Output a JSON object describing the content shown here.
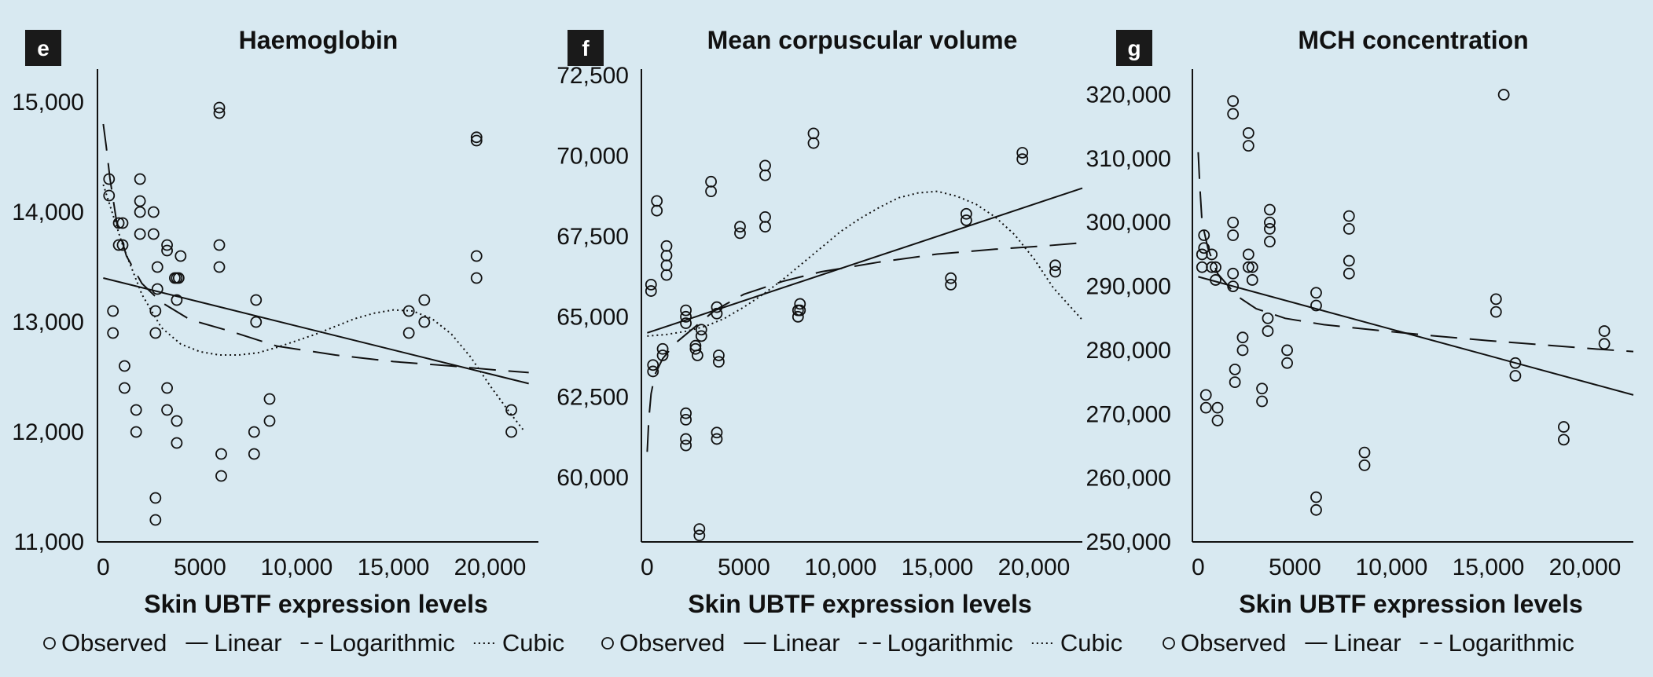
{
  "chart_data": [
    {
      "panel": "e",
      "type": "scatter",
      "title": "Haemoglobin",
      "xlabel": "Skin UBTF expression levels",
      "ylabel": "",
      "xlim": [
        -300,
        22500
      ],
      "ylim": [
        11000,
        15300
      ],
      "xticks": [
        0,
        5000,
        10000,
        15000,
        20000
      ],
      "xtick_labels": [
        "0",
        "5000",
        "10,000",
        "15,000",
        "20,000"
      ],
      "yticks": [
        11000,
        12000,
        13000,
        14000,
        15000
      ],
      "ytick_labels": [
        "11,000",
        "12,000",
        "13,000",
        "14,000",
        "15,000"
      ],
      "legend": [
        "Observed",
        "Linear",
        "Logarithmic",
        "Cubic"
      ],
      "observed": [
        [
          300,
          14300
        ],
        [
          300,
          14150
        ],
        [
          500,
          13100
        ],
        [
          500,
          12900
        ],
        [
          800,
          13900
        ],
        [
          800,
          13700
        ],
        [
          1000,
          13900
        ],
        [
          1000,
          13700
        ],
        [
          1100,
          12600
        ],
        [
          1100,
          12400
        ],
        [
          1700,
          12200
        ],
        [
          1700,
          12000
        ],
        [
          1900,
          14300
        ],
        [
          1900,
          14100
        ],
        [
          1900,
          14000
        ],
        [
          1900,
          13800
        ],
        [
          2600,
          14000
        ],
        [
          2600,
          13800
        ],
        [
          2700,
          12900
        ],
        [
          2700,
          13100
        ],
        [
          2700,
          11400
        ],
        [
          2700,
          11200
        ],
        [
          2800,
          13300
        ],
        [
          2800,
          13500
        ],
        [
          3300,
          13700
        ],
        [
          3300,
          13650
        ],
        [
          3300,
          12400
        ],
        [
          3300,
          12200
        ],
        [
          3700,
          13400
        ],
        [
          3800,
          13200
        ],
        [
          3800,
          13400
        ],
        [
          3800,
          12100
        ],
        [
          3800,
          11900
        ],
        [
          3900,
          13400
        ],
        [
          4000,
          13600
        ],
        [
          6000,
          14950
        ],
        [
          6000,
          14900
        ],
        [
          6000,
          13700
        ],
        [
          6000,
          13500
        ],
        [
          6100,
          11800
        ],
        [
          6100,
          11600
        ],
        [
          7900,
          13200
        ],
        [
          7900,
          13000
        ],
        [
          7800,
          12000
        ],
        [
          7800,
          11800
        ],
        [
          8600,
          12300
        ],
        [
          8600,
          12100
        ],
        [
          15800,
          13100
        ],
        [
          15800,
          12900
        ],
        [
          16600,
          13200
        ],
        [
          16600,
          13000
        ],
        [
          19300,
          14680
        ],
        [
          19300,
          14650
        ],
        [
          19300,
          13600
        ],
        [
          19300,
          13400
        ],
        [
          21100,
          12200
        ],
        [
          21100,
          12000
        ]
      ],
      "linear": {
        "x0": 0,
        "y0": 13400,
        "x1": 22000,
        "y1": 12440
      },
      "logarithmic": [
        [
          0,
          14800
        ],
        [
          150,
          14600
        ],
        [
          350,
          14300
        ],
        [
          700,
          13900
        ],
        [
          1200,
          13600
        ],
        [
          2000,
          13350
        ],
        [
          3000,
          13180
        ],
        [
          4500,
          13020
        ],
        [
          6500,
          12920
        ],
        [
          9000,
          12780
        ],
        [
          12000,
          12700
        ],
        [
          15000,
          12640
        ],
        [
          18000,
          12600
        ],
        [
          20500,
          12560
        ],
        [
          22000,
          12540
        ]
      ],
      "cubic": [
        [
          0,
          14250
        ],
        [
          1000,
          13700
        ],
        [
          2000,
          13250
        ],
        [
          3000,
          12950
        ],
        [
          4000,
          12800
        ],
        [
          5000,
          12730
        ],
        [
          6000,
          12700
        ],
        [
          7000,
          12700
        ],
        [
          8000,
          12720
        ],
        [
          9000,
          12770
        ],
        [
          10000,
          12830
        ],
        [
          11000,
          12890
        ],
        [
          12000,
          12960
        ],
        [
          13000,
          13030
        ],
        [
          14000,
          13080
        ],
        [
          15000,
          13110
        ],
        [
          16000,
          13100
        ],
        [
          17000,
          13030
        ],
        [
          18000,
          12890
        ],
        [
          19000,
          12680
        ],
        [
          20000,
          12420
        ],
        [
          21000,
          12180
        ],
        [
          21800,
          12000
        ]
      ]
    },
    {
      "panel": "f",
      "type": "scatter",
      "title": "Mean corpuscular volume",
      "xlabel": "Skin UBTF expression levels",
      "ylabel": "",
      "xlim": [
        -300,
        22500
      ],
      "ylim": [
        58000,
        72700
      ],
      "xticks": [
        0,
        5000,
        10000,
        15000,
        20000
      ],
      "xtick_labels": [
        "0",
        "5000",
        "10,000",
        "15,000",
        "20,000"
      ],
      "yticks": [
        60000,
        62500,
        65000,
        67500,
        70000,
        72500
      ],
      "ytick_labels": [
        "60,000",
        "62,500",
        "65,000",
        "67,500",
        "70,000",
        "72,500"
      ],
      "legend": [
        "Observed",
        "Linear",
        "Logarithmic",
        "Cubic"
      ],
      "observed": [
        [
          200,
          66000
        ],
        [
          200,
          65800
        ],
        [
          300,
          63500
        ],
        [
          300,
          63300
        ],
        [
          500,
          68600
        ],
        [
          500,
          68300
        ],
        [
          800,
          64000
        ],
        [
          800,
          63800
        ],
        [
          1000,
          67200
        ],
        [
          1000,
          66900
        ],
        [
          1000,
          66600
        ],
        [
          1000,
          66300
        ],
        [
          2000,
          65200
        ],
        [
          2000,
          65000
        ],
        [
          2000,
          64800
        ],
        [
          2000,
          62000
        ],
        [
          2000,
          61800
        ],
        [
          2000,
          61200
        ],
        [
          2000,
          61000
        ],
        [
          2500,
          64100
        ],
        [
          2500,
          64000
        ],
        [
          2600,
          63800
        ],
        [
          2800,
          64600
        ],
        [
          2800,
          64400
        ],
        [
          2700,
          58400
        ],
        [
          2700,
          58200
        ],
        [
          3300,
          69200
        ],
        [
          3300,
          68900
        ],
        [
          3600,
          65300
        ],
        [
          3600,
          65100
        ],
        [
          3700,
          63800
        ],
        [
          3700,
          63600
        ],
        [
          3600,
          61400
        ],
        [
          3600,
          61200
        ],
        [
          4800,
          67800
        ],
        [
          4800,
          67600
        ],
        [
          6100,
          69700
        ],
        [
          6100,
          69400
        ],
        [
          6100,
          68100
        ],
        [
          6100,
          67800
        ],
        [
          7900,
          65400
        ],
        [
          7900,
          65200
        ],
        [
          7800,
          65200
        ],
        [
          7800,
          65000
        ],
        [
          8600,
          70700
        ],
        [
          8600,
          70400
        ],
        [
          15700,
          66200
        ],
        [
          15700,
          66000
        ],
        [
          16500,
          68200
        ],
        [
          16500,
          68000
        ],
        [
          19400,
          70100
        ],
        [
          19400,
          69900
        ],
        [
          21100,
          66600
        ],
        [
          21100,
          66400
        ]
      ],
      "linear": {
        "x0": 0,
        "y0": 64500,
        "x1": 22500,
        "y1": 69000
      },
      "logarithmic": [
        [
          0,
          60800
        ],
        [
          80,
          61800
        ],
        [
          200,
          62600
        ],
        [
          400,
          63200
        ],
        [
          800,
          63700
        ],
        [
          1500,
          64200
        ],
        [
          2500,
          64700
        ],
        [
          3500,
          65200
        ],
        [
          5000,
          65700
        ],
        [
          7000,
          66100
        ],
        [
          9000,
          66400
        ],
        [
          12000,
          66700
        ],
        [
          15000,
          66950
        ],
        [
          18000,
          67100
        ],
        [
          20500,
          67200
        ],
        [
          22500,
          67300
        ]
      ],
      "cubic": [
        [
          0,
          64400
        ],
        [
          1000,
          64450
        ],
        [
          2000,
          64550
        ],
        [
          3000,
          64700
        ],
        [
          4000,
          64950
        ],
        [
          5000,
          65300
        ],
        [
          6000,
          65700
        ],
        [
          7000,
          66150
        ],
        [
          8000,
          66650
        ],
        [
          9000,
          67150
        ],
        [
          10000,
          67650
        ],
        [
          11000,
          68050
        ],
        [
          12000,
          68400
        ],
        [
          13000,
          68700
        ],
        [
          14000,
          68850
        ],
        [
          15000,
          68900
        ],
        [
          16000,
          68750
        ],
        [
          17000,
          68500
        ],
        [
          18000,
          68100
        ],
        [
          19000,
          67550
        ],
        [
          20000,
          66800
        ],
        [
          21000,
          65900
        ],
        [
          22500,
          64900
        ]
      ]
    },
    {
      "panel": "g",
      "type": "scatter",
      "title": "MCH concentration",
      "xlabel": "Skin UBTF expression levels",
      "ylabel": "",
      "xlim": [
        -300,
        22500
      ],
      "ylim": [
        250000,
        324000
      ],
      "xticks": [
        0,
        5000,
        10000,
        15000,
        20000
      ],
      "xtick_labels": [
        "0",
        "5000",
        "10,000",
        "15,000",
        "20,000"
      ],
      "yticks": [
        250000,
        260000,
        270000,
        280000,
        290000,
        300000,
        310000,
        320000
      ],
      "ytick_labels": [
        "250,000",
        "260,000",
        "270,000",
        "280,000",
        "290,000",
        "300,000",
        "310,000",
        "320,000"
      ],
      "legend": [
        "Observed",
        "Linear",
        "Logarithmic"
      ],
      "observed": [
        [
          200,
          295000
        ],
        [
          200,
          293000
        ],
        [
          300,
          298000
        ],
        [
          300,
          296000
        ],
        [
          400,
          273000
        ],
        [
          400,
          271000
        ],
        [
          700,
          295000
        ],
        [
          700,
          293000
        ],
        [
          900,
          293000
        ],
        [
          900,
          291000
        ],
        [
          1000,
          271000
        ],
        [
          1000,
          269000
        ],
        [
          1800,
          319000
        ],
        [
          1800,
          317000
        ],
        [
          1800,
          300000
        ],
        [
          1800,
          298000
        ],
        [
          1800,
          292000
        ],
        [
          1800,
          290000
        ],
        [
          1900,
          277000
        ],
        [
          1900,
          275000
        ],
        [
          2300,
          282000
        ],
        [
          2300,
          280000
        ],
        [
          2600,
          314000
        ],
        [
          2600,
          312000
        ],
        [
          2600,
          295000
        ],
        [
          2600,
          293000
        ],
        [
          2800,
          293000
        ],
        [
          2800,
          291000
        ],
        [
          3300,
          274000
        ],
        [
          3300,
          272000
        ],
        [
          3600,
          285000
        ],
        [
          3600,
          283000
        ],
        [
          3700,
          302000
        ],
        [
          3700,
          300000
        ],
        [
          3700,
          299000
        ],
        [
          3700,
          297000
        ],
        [
          4600,
          280000
        ],
        [
          4600,
          278000
        ],
        [
          6100,
          289000
        ],
        [
          6100,
          287000
        ],
        [
          6100,
          257000
        ],
        [
          6100,
          255000
        ],
        [
          7800,
          301000
        ],
        [
          7800,
          299000
        ],
        [
          7800,
          294000
        ],
        [
          7800,
          292000
        ],
        [
          8600,
          264000
        ],
        [
          8600,
          262000
        ],
        [
          15400,
          288000
        ],
        [
          15400,
          286000
        ],
        [
          15800,
          320000
        ],
        [
          16400,
          278000
        ],
        [
          16400,
          276000
        ],
        [
          18900,
          268000
        ],
        [
          18900,
          266000
        ],
        [
          21000,
          283000
        ],
        [
          21000,
          281000
        ]
      ],
      "linear": {
        "x0": 0,
        "y0": 291500,
        "x1": 22500,
        "y1": 273000
      },
      "logarithmic": [
        [
          0,
          311000
        ],
        [
          80,
          306000
        ],
        [
          200,
          300000
        ],
        [
          500,
          296000
        ],
        [
          1000,
          292000
        ],
        [
          2000,
          288500
        ],
        [
          3000,
          286500
        ],
        [
          4500,
          285000
        ],
        [
          6500,
          284000
        ],
        [
          9000,
          283200
        ],
        [
          12000,
          282300
        ],
        [
          15000,
          281500
        ],
        [
          18000,
          280800
        ],
        [
          20500,
          280200
        ],
        [
          22500,
          279800
        ]
      ]
    }
  ]
}
